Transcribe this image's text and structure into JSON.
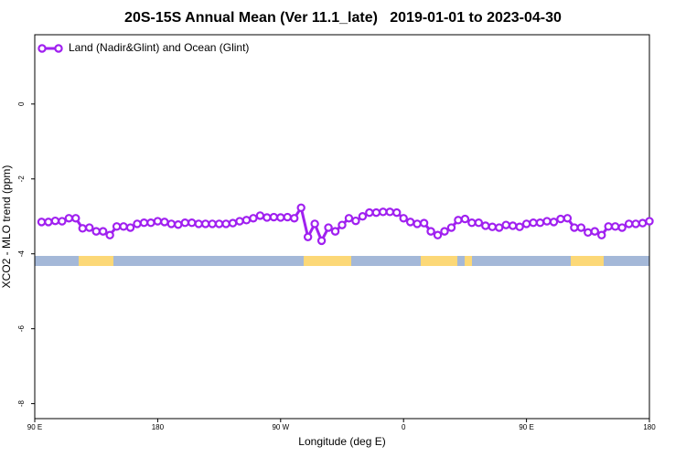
{
  "chart_data": {
    "type": "line",
    "title": "20S-15S Annual Mean (Ver 11.1_late)   2019-01-01 to 2023-04-30",
    "x_label": "Longitude (deg E)",
    "y_label": "XCO2 - MLO trend (ppm)",
    "xlim": [
      90,
      540
    ],
    "ylim": [
      -8.4,
      1.85
    ],
    "xticks": [
      {
        "value": 90,
        "label": "90 E"
      },
      180,
      {
        "value": 270,
        "label": "90 W"
      },
      {
        "value": 360,
        "label": "0"
      },
      {
        "value": 450,
        "label": "90 E"
      },
      {
        "value": 540,
        "label": "180"
      }
    ],
    "yticks": [
      0,
      -2,
      -4,
      -6,
      -8
    ],
    "legend": "top-left",
    "series": [
      {
        "name": "Land (Nadir&Glint) and Ocean (Glint)",
        "color": "#a020f0",
        "x": [
          95,
          100,
          105,
          110,
          115,
          120,
          125,
          130,
          135,
          140,
          145,
          150,
          155,
          160,
          165,
          170,
          175,
          180,
          185,
          190,
          195,
          200,
          205,
          210,
          215,
          220,
          225,
          230,
          235,
          240,
          245,
          250,
          255,
          260,
          265,
          270,
          275,
          280,
          285,
          290,
          295,
          300,
          305,
          310,
          315,
          320,
          325,
          330,
          335,
          340,
          345,
          350,
          355,
          360,
          365,
          370,
          375,
          380,
          385,
          390,
          395,
          400,
          405,
          410,
          415,
          420,
          425,
          430,
          435,
          440,
          445,
          450,
          455,
          460,
          465,
          470,
          475,
          480,
          485,
          490,
          495,
          500,
          505,
          510,
          515,
          520,
          525,
          530,
          535,
          540
        ],
        "values": [
          -3.15,
          -3.15,
          -3.12,
          -3.13,
          -3.05,
          -3.05,
          -3.32,
          -3.3,
          -3.4,
          -3.4,
          -3.5,
          -3.27,
          -3.27,
          -3.3,
          -3.2,
          -3.17,
          -3.17,
          -3.13,
          -3.15,
          -3.2,
          -3.22,
          -3.17,
          -3.17,
          -3.2,
          -3.2,
          -3.2,
          -3.2,
          -3.2,
          -3.18,
          -3.13,
          -3.1,
          -3.05,
          -2.98,
          -3.03,
          -3.02,
          -3.03,
          -3.02,
          -3.05,
          -2.77,
          -3.55,
          -3.2,
          -3.65,
          -3.3,
          -3.4,
          -3.23,
          -3.05,
          -3.12,
          -3.0,
          -2.9,
          -2.9,
          -2.88,
          -2.88,
          -2.9,
          -3.05,
          -3.15,
          -3.2,
          -3.18,
          -3.4,
          -3.5,
          -3.4,
          -3.3,
          -3.1,
          -3.07,
          -3.17,
          -3.17,
          -3.25,
          -3.28,
          -3.3,
          -3.23,
          -3.25,
          -3.28,
          -3.2,
          -3.17,
          -3.17,
          -3.13,
          -3.15,
          -3.07,
          -3.05,
          -3.3,
          -3.3,
          -3.43,
          -3.4,
          -3.5,
          -3.27,
          -3.27,
          -3.3,
          -3.2,
          -3.2,
          -3.18,
          -3.13
        ]
      }
    ]
  }
}
